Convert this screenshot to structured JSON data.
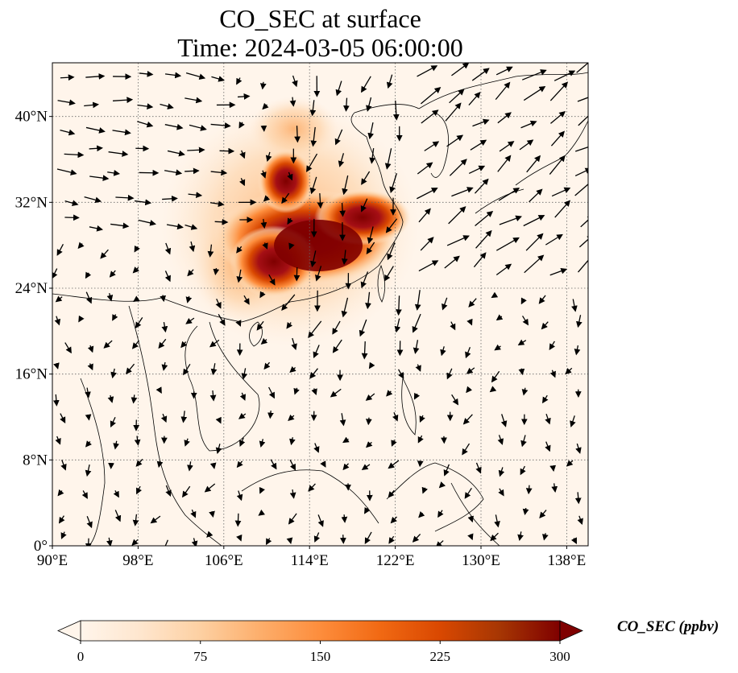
{
  "title": {
    "line1": "CO_SEC at surface",
    "line2": "Time: 2024-03-05 06:00:00"
  },
  "map": {
    "lon_range": [
      90,
      140
    ],
    "lat_range": [
      0,
      45
    ],
    "lon_ticks": [
      "90°E",
      "98°E",
      "106°E",
      "114°E",
      "122°E",
      "130°E",
      "138°E"
    ],
    "lon_tick_values": [
      90,
      98,
      106,
      114,
      122,
      130,
      138
    ],
    "lat_ticks": [
      "0°",
      "8°N",
      "16°N",
      "24°N",
      "32°N",
      "40°N"
    ],
    "lat_tick_values": [
      0,
      8,
      16,
      24,
      32,
      40
    ],
    "gridlines": "dotted",
    "background_color": "#fff5eb",
    "plume_peak_color": "#7f0000"
  },
  "colorbar": {
    "label": "CO_SEC (ppbv)",
    "min": 0,
    "max": 300,
    "ticks": [
      "0",
      "75",
      "150",
      "225",
      "300"
    ],
    "tick_values": [
      0,
      75,
      150,
      225,
      300
    ],
    "extend": "both",
    "colormap": [
      "#fff5eb",
      "#fee6ce",
      "#fdd0a2",
      "#fdae6b",
      "#fd8d3c",
      "#f16913",
      "#d94801",
      "#a63603",
      "#7f0000"
    ]
  },
  "chart_data": {
    "type": "heatmap",
    "variable": "CO_SEC",
    "units": "ppbv",
    "level": "surface",
    "time": "2024-03-05 06:00:00",
    "plume": [
      {
        "lon": 115,
        "lat": 28,
        "value": 300
      },
      {
        "lon": 112,
        "lat": 28.5,
        "value": 300
      },
      {
        "lon": 118,
        "lat": 29,
        "value": 300
      },
      {
        "lon": 111,
        "lat": 25,
        "value": 290
      },
      {
        "lon": 110,
        "lat": 34,
        "value": 230
      },
      {
        "lon": 107,
        "lat": 29,
        "value": 150
      },
      {
        "lon": 113,
        "lat": 38,
        "value": 90
      },
      {
        "lon": 121,
        "lat": 27,
        "value": 200
      },
      {
        "lon": 106,
        "lat": 23,
        "value": 60
      }
    ]
  }
}
